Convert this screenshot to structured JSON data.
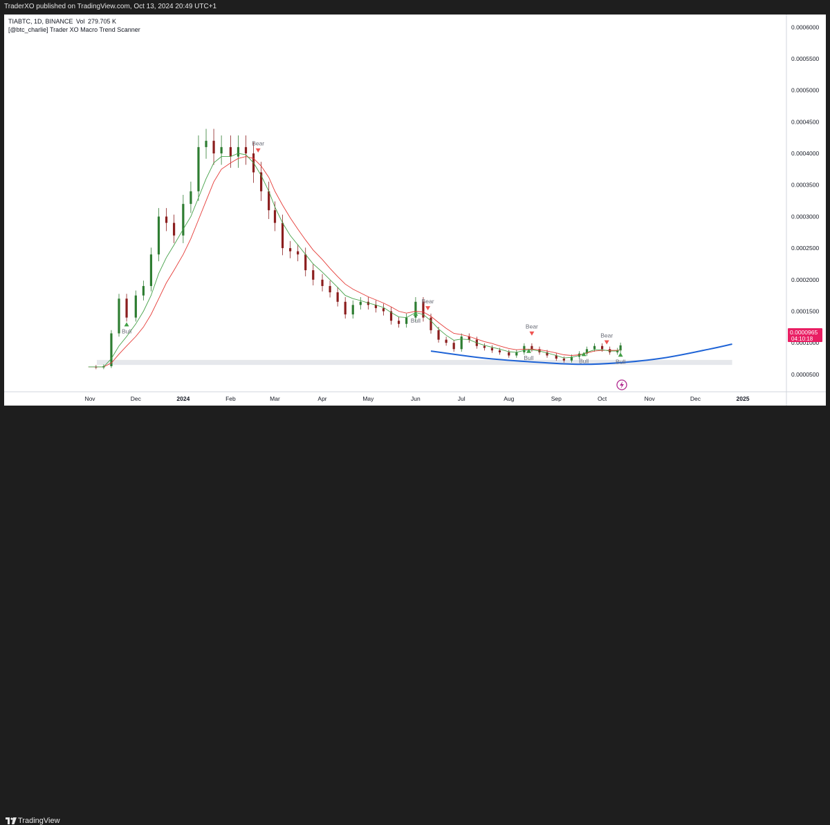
{
  "header": {
    "published_by": "TraderXO published on TradingView.com, Oct 13, 2024 20:49 UTC+1"
  },
  "footer": {
    "brand": "TradingView"
  },
  "colors": {
    "bull_candle": "#2e7d32",
    "bear_candle": "#8b1e1e",
    "fast_ema": "#43a047",
    "slow_ema": "#e53935",
    "curve": "#1e63d6",
    "price_badge": "#e91e63",
    "support_zone": "#e6e8ec"
  },
  "chart_data": {
    "type": "candlestick",
    "symbol_line": "TIABTC, 1D, BINANCE",
    "volume_label": "Vol",
    "volume_value": "279.705 K",
    "indicator": "[@btc_charlie] Trader XO Macro Trend Scanner",
    "x_ticks": [
      "Nov",
      "Dec",
      "2024",
      "Feb",
      "Mar",
      "Apr",
      "May",
      "Jun",
      "Jul",
      "Aug",
      "Sep",
      "Oct",
      "Nov",
      "Dec",
      "2025"
    ],
    "x_tick_dates": [
      "2023-11-01",
      "2023-12-01",
      "2024-01-01",
      "2024-02-01",
      "2024-03-01",
      "2024-04-01",
      "2024-05-01",
      "2024-06-01",
      "2024-07-01",
      "2024-08-01",
      "2024-09-01",
      "2024-10-01",
      "2024-11-01",
      "2024-12-01",
      "2025-01-01"
    ],
    "y_ticks": [
      "0.0000500",
      "0.0001000",
      "0.0001500",
      "0.0002000",
      "0.0002500",
      "0.0003000",
      "0.0003500",
      "0.0004000",
      "0.0004500",
      "0.0005000",
      "0.0005500",
      "0.0006000"
    ],
    "ylim": [
      2.25e-05,
      0.00062
    ],
    "last_price": "0.0000965",
    "countdown": "04:10:18",
    "price_series": {
      "dates": [
        "2023-10-31",
        "2023-11-05",
        "2023-11-10",
        "2023-11-15",
        "2023-11-20",
        "2023-11-25",
        "2023-12-01",
        "2023-12-06",
        "2023-12-11",
        "2023-12-16",
        "2023-12-21",
        "2023-12-26",
        "2024-01-01",
        "2024-01-06",
        "2024-01-11",
        "2024-01-16",
        "2024-01-21",
        "2024-01-26",
        "2024-02-01",
        "2024-02-06",
        "2024-02-11",
        "2024-02-16",
        "2024-02-21",
        "2024-02-26",
        "2024-03-01",
        "2024-03-06",
        "2024-03-11",
        "2024-03-16",
        "2024-03-21",
        "2024-03-26",
        "2024-04-01",
        "2024-04-06",
        "2024-04-11",
        "2024-04-16",
        "2024-04-21",
        "2024-04-26",
        "2024-05-01",
        "2024-05-06",
        "2024-05-11",
        "2024-05-16",
        "2024-05-21",
        "2024-05-26",
        "2024-06-01",
        "2024-06-06",
        "2024-06-11",
        "2024-06-16",
        "2024-06-21",
        "2024-06-26",
        "2024-07-01",
        "2024-07-06",
        "2024-07-11",
        "2024-07-16",
        "2024-07-21",
        "2024-07-26",
        "2024-08-01",
        "2024-08-06",
        "2024-08-11",
        "2024-08-16",
        "2024-08-21",
        "2024-08-26",
        "2024-09-01",
        "2024-09-06",
        "2024-09-11",
        "2024-09-16",
        "2024-09-21",
        "2024-09-26",
        "2024-10-01",
        "2024-10-06",
        "2024-10-11",
        "2024-10-13"
      ],
      "close": [
        6.2e-05,
        6.1e-05,
        6.3e-05,
        0.000115,
        0.00017,
        0.00014,
        0.000175,
        0.00019,
        0.00024,
        0.0003,
        0.00029,
        0.00027,
        0.00032,
        0.00034,
        0.00041,
        0.00042,
        0.0004,
        0.00041,
        0.000395,
        0.00041,
        0.0004,
        0.00037,
        0.00034,
        0.00031,
        0.00029,
        0.00025,
        0.000245,
        0.00024,
        0.000215,
        0.0002,
        0.00019,
        0.00018,
        0.000165,
        0.000145,
        0.00016,
        0.000165,
        0.00016,
        0.000155,
        0.00015,
        0.000135,
        0.00013,
        0.00014,
        0.000165,
        0.00014,
        0.00012,
        0.000105,
        0.0001,
        9e-05,
        0.00011,
        0.000105,
        9.5e-05,
        9.2e-05,
        8.8e-05,
        8.5e-05,
        8e-05,
        8.5e-05,
        9.5e-05,
        9e-05,
        8.5e-05,
        8e-05,
        7.5e-05,
        7.2e-05,
        7.8e-05,
        8.3e-05,
        9e-05,
        9.5e-05,
        9e-05,
        8.5e-05,
        8.8e-05,
        9.6e-05
      ]
    },
    "fast_ema": [
      6.2e-05,
      6.2e-05,
      6.2e-05,
      7.5e-05,
      9.5e-05,
      0.00011,
      0.00013,
      0.00015,
      0.000175,
      0.00021,
      0.000235,
      0.000255,
      0.00028,
      0.0003,
      0.00033,
      0.00036,
      0.000385,
      0.000395,
      0.000395,
      0.0004,
      0.000398,
      0.000385,
      0.000365,
      0.00034,
      0.000315,
      0.00029,
      0.00027,
      0.000255,
      0.00024,
      0.000225,
      0.000212,
      0.0002,
      0.000188,
      0.000175,
      0.00017,
      0.000167,
      0.000163,
      0.00016,
      0.000156,
      0.000148,
      0.000141,
      0.00014,
      0.000148,
      0.000145,
      0.000135,
      0.000122,
      0.000112,
      0.000104,
      0.000106,
      0.000105,
      0.0001,
      9.6e-05,
      9.3e-05,
      9e-05,
      8.6e-05,
      8.5e-05,
      8.8e-05,
      8.9e-05,
      8.7e-05,
      8.4e-05,
      8e-05,
      7.6e-05,
      7.7e-05,
      8e-05,
      8.5e-05,
      8.9e-05,
      8.9e-05,
      8.7e-05,
      8.7e-05,
      9e-05
    ],
    "slow_ema": [
      6.2e-05,
      6.2e-05,
      6.2e-05,
      6.8e-05,
      8.2e-05,
      9.5e-05,
      0.00011,
      0.000125,
      0.000145,
      0.00017,
      0.000195,
      0.000215,
      0.00024,
      0.000265,
      0.000295,
      0.000325,
      0.000355,
      0.000375,
      0.000385,
      0.000392,
      0.000395,
      0.000392,
      0.00038,
      0.000362,
      0.00034,
      0.000318,
      0.000298,
      0.00028,
      0.000263,
      0.000247,
      0.000232,
      0.000218,
      0.000205,
      0.000193,
      0.000185,
      0.000179,
      0.000173,
      0.000168,
      0.000163,
      0.000157,
      0.00015,
      0.000147,
      0.00015,
      0.000149,
      0.000142,
      0.000132,
      0.000123,
      0.000115,
      0.000113,
      0.00011,
      0.000106,
      0.000102,
      9.9e-05,
      9.5e-05,
      9.1e-05,
      8.9e-05,
      9e-05,
      9e-05,
      8.9e-05,
      8.7e-05,
      8.4e-05,
      8.1e-05,
      8e-05,
      8.1e-05,
      8.4e-05,
      8.7e-05,
      8.8e-05,
      8.8e-05,
      8.8e-05,
      8.9e-05
    ],
    "support_zone": {
      "from": "2023-11-01",
      "to": "2024-12-25",
      "low": 6.5e-05,
      "high": 7.3e-05
    },
    "curve": {
      "dates": [
        "2024-06-11",
        "2024-07-15",
        "2024-08-15",
        "2024-09-15",
        "2024-10-10",
        "2024-11-10",
        "2024-12-10",
        "2024-12-25"
      ],
      "values": [
        8.7e-05,
        7.6e-05,
        7e-05,
        6.6e-05,
        6.8e-05,
        7.6e-05,
        9e-05,
        9.8e-05
      ]
    },
    "signals": [
      {
        "label": "Bull",
        "type": "bull",
        "date": "2023-11-25",
        "value": 0.000126
      },
      {
        "label": "Bear",
        "type": "bear",
        "date": "2024-02-19",
        "value": 0.000408
      },
      {
        "label": "Bull",
        "type": "bull",
        "date": "2024-06-01",
        "value": 0.000143
      },
      {
        "label": "Bear",
        "type": "bear",
        "date": "2024-06-09",
        "value": 0.000158
      },
      {
        "label": "Bear",
        "type": "bear",
        "date": "2024-08-16",
        "value": 0.000118
      },
      {
        "label": "Bull",
        "type": "bull",
        "date": "2024-08-14",
        "value": 8.4e-05
      },
      {
        "label": "Bull",
        "type": "bull",
        "date": "2024-09-19",
        "value": 7.9e-05
      },
      {
        "label": "Bear",
        "type": "bear",
        "date": "2024-10-04",
        "value": 0.000104
      },
      {
        "label": "Bull",
        "type": "bull",
        "date": "2024-10-13",
        "value": 7.8e-05
      }
    ]
  }
}
